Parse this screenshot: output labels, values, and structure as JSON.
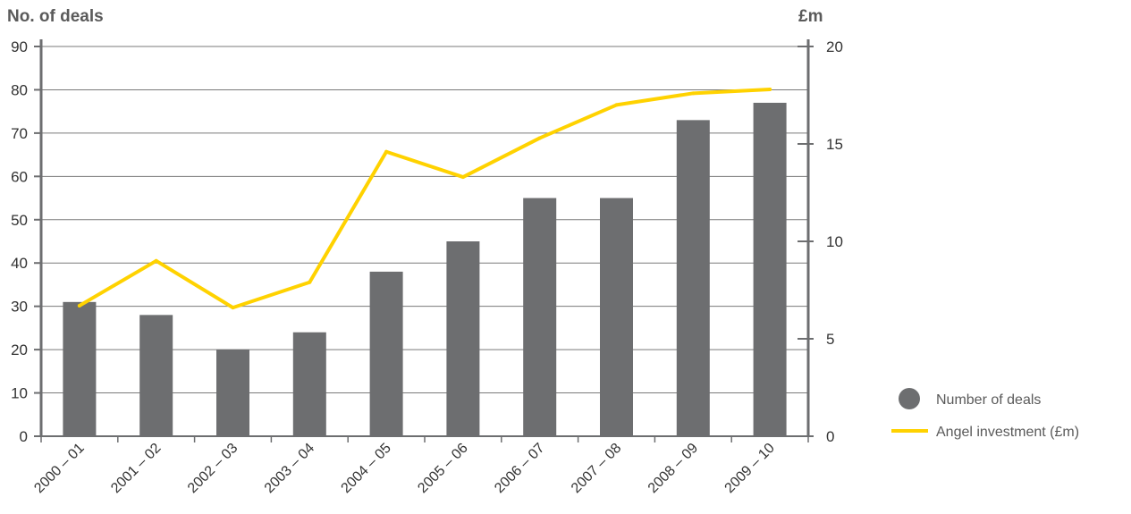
{
  "chart_data": {
    "type": "bar",
    "categories": [
      "2000 – 01",
      "2001 – 02",
      "2002 – 03",
      "2003 – 04",
      "2004 – 05",
      "2005 – 06",
      "2006 – 07",
      "2007 – 08",
      "2008 – 09",
      "2009 – 10"
    ],
    "series": [
      {
        "name": "Number of deals",
        "type": "bar",
        "axis": "left",
        "color": "#6d6e70",
        "values": [
          31,
          28,
          20,
          24,
          38,
          45,
          55,
          55,
          73,
          77
        ]
      },
      {
        "name": "Angel investment (£m)",
        "type": "line",
        "axis": "right",
        "color": "#ffd200",
        "values": [
          6.7,
          9.0,
          6.6,
          7.9,
          14.6,
          13.3,
          15.3,
          17.0,
          17.6,
          17.8
        ]
      }
    ],
    "ylabel_left": "No. of deals",
    "ylabel_right": "£m",
    "ylim_left": [
      0,
      90
    ],
    "ylim_right": [
      0,
      20
    ],
    "yticks_left": [
      0,
      10,
      20,
      30,
      40,
      50,
      60,
      70,
      80,
      90
    ],
    "yticks_right": [
      0,
      5,
      10,
      15,
      20
    ],
    "grid": true,
    "legend_position": "bottom-right"
  }
}
